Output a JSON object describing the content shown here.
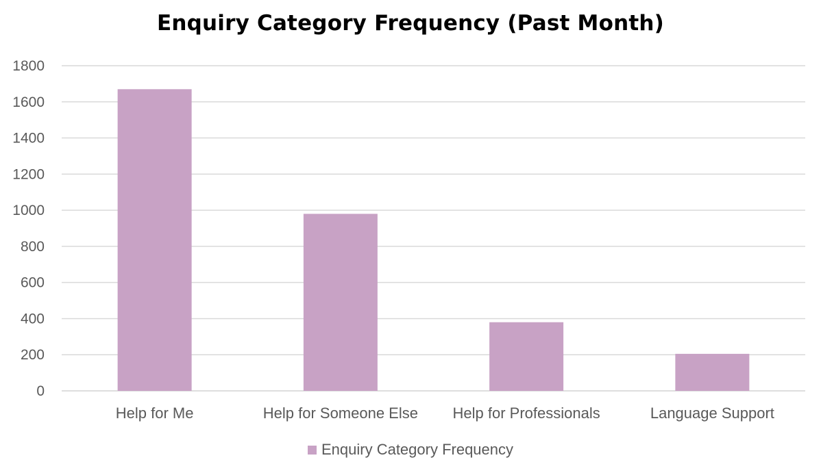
{
  "chart_data": {
    "type": "bar",
    "title": "Enquiry Category Frequency (Past Month)",
    "xlabel": "",
    "ylabel": "",
    "categories": [
      "Help for Me",
      "Help for Someone Else",
      "Help for Professionals",
      "Language Support"
    ],
    "series": [
      {
        "name": "Enquiry Category Frequency",
        "values": [
          1670,
          980,
          380,
          205
        ],
        "color": "#c8a2c5"
      }
    ],
    "ylim": [
      0,
      1800
    ],
    "yticks": [
      0,
      200,
      400,
      600,
      800,
      1000,
      1200,
      1400,
      1600,
      1800
    ],
    "grid": true,
    "legend_position": "bottom",
    "colors": {
      "gridline": "#d9d9d9",
      "axis_text": "#595959",
      "title": "#000000"
    }
  }
}
